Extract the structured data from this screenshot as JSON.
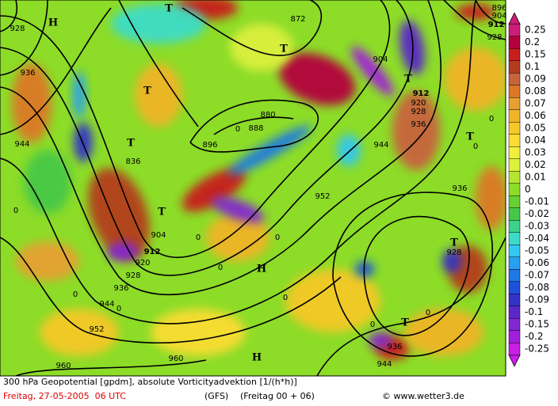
{
  "map": {
    "contour_labels": [
      "928",
      "936",
      "944",
      "896",
      "880",
      "888",
      "872",
      "904",
      "912",
      "920",
      "928",
      "936",
      "944",
      "952",
      "936",
      "928",
      "904",
      "912",
      "920",
      "928",
      "936",
      "944",
      "952",
      "960",
      "960",
      "944",
      "936",
      "836",
      "928",
      "912",
      "904",
      "896",
      "0",
      "0",
      "0",
      "0",
      "0",
      "0",
      "0",
      "0",
      "0",
      "0",
      "0",
      "0"
    ],
    "pressure_centers": [
      "T",
      "T",
      "T",
      "T",
      "T",
      "T",
      "T",
      "T",
      "T",
      "H",
      "H",
      "H"
    ]
  },
  "legend": {
    "levels": [
      0.25,
      0.2,
      0.15,
      0.1,
      0.09,
      0.08,
      0.07,
      0.06,
      0.05,
      0.04,
      0.03,
      0.02,
      0.01,
      0,
      -0.01,
      -0.02,
      -0.03,
      -0.04,
      -0.05,
      -0.06,
      -0.07,
      -0.08,
      -0.09,
      -0.1,
      -0.15,
      -0.2,
      -0.25
    ],
    "colors": [
      "#cc1e78",
      "#b4003c",
      "#c81e1e",
      "#b43c1e",
      "#c8643c",
      "#dc7828",
      "#e6a032",
      "#f0b428",
      "#f5c828",
      "#fadc32",
      "#f0f03c",
      "#dcf03c",
      "#b4e632",
      "#8cdc28",
      "#64d232",
      "#46c846",
      "#3cd28c",
      "#3cdcc8",
      "#32c8f0",
      "#28a0f0",
      "#1e78e6",
      "#1e50dc",
      "#3232c8",
      "#5a28c8",
      "#8228d2",
      "#a01edc",
      "#c81ee6"
    ]
  },
  "caption": {
    "title": "300 hPa Geopotential [gpdm], absolute Vorticityadvektion [1/(h*h)]",
    "date": "Freitag, 27-05-2005  06 UTC",
    "model": "(GFS)",
    "run": "(Freitag 00 + 06)",
    "copyright": "© www.wetter3.de"
  }
}
